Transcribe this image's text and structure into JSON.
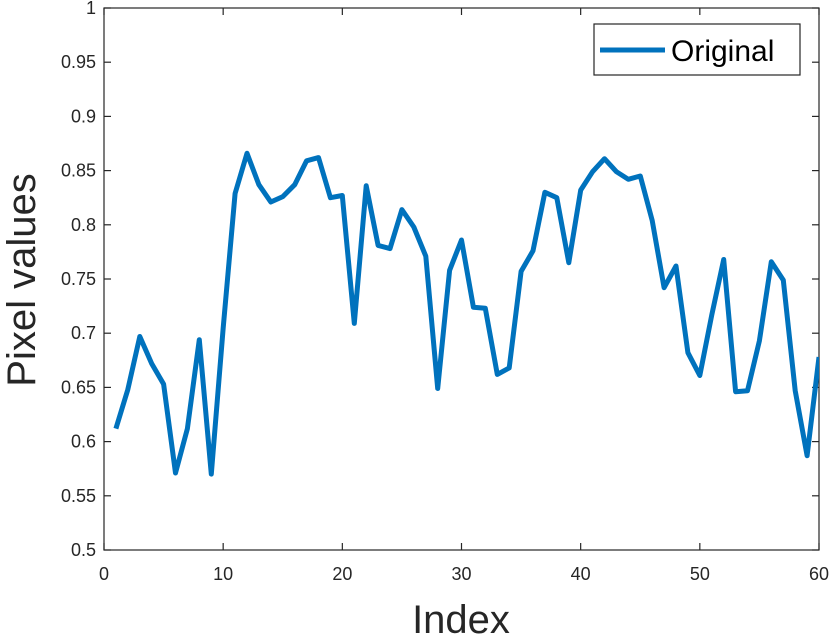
{
  "chart_data": {
    "type": "line",
    "xlabel": "Index",
    "ylabel": "Pixel values",
    "xlim": [
      0,
      60
    ],
    "ylim": [
      0.5,
      1
    ],
    "xticks": [
      0,
      10,
      20,
      30,
      40,
      50,
      60
    ],
    "xtick_labels": [
      "0",
      "10",
      "20",
      "30",
      "40",
      "50",
      "60"
    ],
    "yticks": [
      0.5,
      0.55,
      0.6,
      0.65,
      0.7,
      0.75,
      0.8,
      0.85,
      0.9,
      0.95,
      1
    ],
    "ytick_labels": [
      "0.5",
      "0.55",
      "0.6",
      "0.65",
      "0.7",
      "0.75",
      "0.8",
      "0.85",
      "0.9",
      "0.95",
      "1"
    ],
    "grid": false,
    "legend_position": "top-right",
    "series": [
      {
        "name": "Original",
        "color": "#0072BD",
        "x": [
          1,
          2,
          3,
          4,
          5,
          6,
          7,
          8,
          9,
          10,
          11,
          12,
          13,
          14,
          15,
          16,
          17,
          18,
          19,
          20,
          21,
          22,
          23,
          24,
          25,
          26,
          27,
          28,
          29,
          30,
          31,
          32,
          33,
          34,
          35,
          36,
          37,
          38,
          39,
          40,
          41,
          42,
          43,
          44,
          45,
          46,
          47,
          48,
          49,
          50,
          51,
          52,
          53,
          54,
          55,
          56,
          57,
          58,
          59,
          60
        ],
        "values": [
          0.612,
          0.648,
          0.697,
          0.672,
          0.653,
          0.571,
          0.612,
          0.694,
          0.57,
          0.705,
          0.829,
          0.866,
          0.837,
          0.821,
          0.826,
          0.837,
          0.859,
          0.862,
          0.825,
          0.827,
          0.709,
          0.836,
          0.781,
          0.778,
          0.814,
          0.798,
          0.771,
          0.649,
          0.758,
          0.786,
          0.724,
          0.723,
          0.662,
          0.668,
          0.757,
          0.776,
          0.83,
          0.825,
          0.765,
          0.832,
          0.849,
          0.861,
          0.849,
          0.842,
          0.845,
          0.804,
          0.742,
          0.762,
          0.682,
          0.661,
          0.717,
          0.768,
          0.646,
          0.647,
          0.693,
          0.766,
          0.749,
          0.647,
          0.587,
          0.678
        ]
      }
    ]
  }
}
